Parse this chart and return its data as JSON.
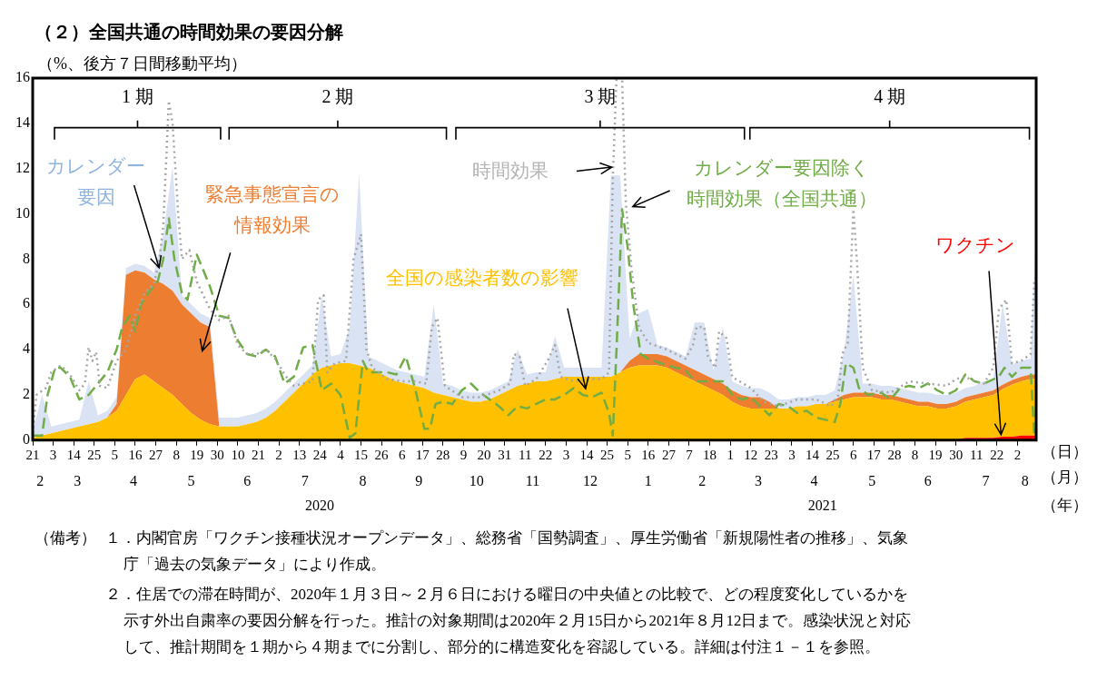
{
  "chart_data": {
    "type": "area",
    "title": "（２）全国共通の時間効果の要因分解",
    "ylabel": "（%、後方７日間移動平均）",
    "xlabel": "（日）",
    "x2label": "（月）",
    "stacked": true,
    "grid": false,
    "x": [
      "2020-02-21",
      "2020-02-26",
      "2020-03-02",
      "2020-03-07",
      "2020-03-12",
      "2020-03-17",
      "2020-03-22",
      "2020-03-27",
      "2020-04-01",
      "2020-04-06",
      "2020-04-11",
      "2020-04-16",
      "2020-04-21",
      "2020-04-26",
      "2020-05-01",
      "2020-05-06",
      "2020-05-11",
      "2020-05-16",
      "2020-05-21",
      "2020-05-26",
      "2020-05-31",
      "2020-06-05",
      "2020-06-10",
      "2020-06-15",
      "2020-06-20",
      "2020-06-25",
      "2020-06-30",
      "2020-07-05",
      "2020-07-10",
      "2020-07-15",
      "2020-07-20",
      "2020-07-25",
      "2020-07-30",
      "2020-08-04",
      "2020-08-09",
      "2020-08-14",
      "2020-08-19",
      "2020-08-24",
      "2020-08-29",
      "2020-09-03",
      "2020-09-08",
      "2020-09-13",
      "2020-09-18",
      "2020-09-23",
      "2020-09-28",
      "2020-10-03",
      "2020-10-08",
      "2020-10-13",
      "2020-10-18",
      "2020-10-23",
      "2020-10-28",
      "2020-11-02",
      "2020-11-07",
      "2020-11-12",
      "2020-11-17",
      "2020-11-22",
      "2020-11-27",
      "2020-12-02",
      "2020-12-07",
      "2020-12-12",
      "2020-12-17",
      "2020-12-22",
      "2020-12-27",
      "2021-01-01",
      "2021-01-06",
      "2021-01-11",
      "2021-01-16",
      "2021-01-21",
      "2021-01-26",
      "2021-01-31",
      "2021-02-05",
      "2021-02-10",
      "2021-02-15",
      "2021-02-20",
      "2021-02-25",
      "2021-03-02",
      "2021-03-07",
      "2021-03-12",
      "2021-03-17",
      "2021-03-22",
      "2021-03-27",
      "2021-04-01",
      "2021-04-06",
      "2021-04-11",
      "2021-04-16",
      "2021-04-21",
      "2021-04-26",
      "2021-05-01",
      "2021-05-06",
      "2021-05-11",
      "2021-05-16",
      "2021-05-21",
      "2021-05-26",
      "2021-05-31",
      "2021-06-05",
      "2021-06-10",
      "2021-06-15",
      "2021-06-20",
      "2021-06-25",
      "2021-06-30",
      "2021-07-05",
      "2021-07-10",
      "2021-07-15",
      "2021-07-20",
      "2021-07-25",
      "2021-07-30",
      "2021-08-04",
      "2021-08-09",
      "2021-08-12"
    ],
    "xlim": [
      "2020-02-21",
      "2021-08-12"
    ],
    "xticks": [
      {
        "value": "2020-02-21",
        "label": "21"
      },
      {
        "value": "2020-03-03",
        "label": "3"
      },
      {
        "value": "2020-03-14",
        "label": "14"
      },
      {
        "value": "2020-03-25",
        "label": "25"
      },
      {
        "value": "2020-04-05",
        "label": "5"
      },
      {
        "value": "2020-04-16",
        "label": "16"
      },
      {
        "value": "2020-04-27",
        "label": "27"
      },
      {
        "value": "2020-05-08",
        "label": "8"
      },
      {
        "value": "2020-05-19",
        "label": "19"
      },
      {
        "value": "2020-05-30",
        "label": "30"
      },
      {
        "value": "2020-06-10",
        "label": "10"
      },
      {
        "value": "2020-06-21",
        "label": "21"
      },
      {
        "value": "2020-07-02",
        "label": "2"
      },
      {
        "value": "2020-07-13",
        "label": "13"
      },
      {
        "value": "2020-07-24",
        "label": "24"
      },
      {
        "value": "2020-08-04",
        "label": "4"
      },
      {
        "value": "2020-08-15",
        "label": "15"
      },
      {
        "value": "2020-08-26",
        "label": "26"
      },
      {
        "value": "2020-09-06",
        "label": "6"
      },
      {
        "value": "2020-09-17",
        "label": "17"
      },
      {
        "value": "2020-09-28",
        "label": "28"
      },
      {
        "value": "2020-10-09",
        "label": "9"
      },
      {
        "value": "2020-10-20",
        "label": "20"
      },
      {
        "value": "2020-10-31",
        "label": "31"
      },
      {
        "value": "2020-11-11",
        "label": "11"
      },
      {
        "value": "2020-11-22",
        "label": "22"
      },
      {
        "value": "2020-12-03",
        "label": "3"
      },
      {
        "value": "2020-12-14",
        "label": "14"
      },
      {
        "value": "2020-12-25",
        "label": "25"
      },
      {
        "value": "2021-01-05",
        "label": "5"
      },
      {
        "value": "2021-01-16",
        "label": "16"
      },
      {
        "value": "2021-01-27",
        "label": "27"
      },
      {
        "value": "2021-02-07",
        "label": "7"
      },
      {
        "value": "2021-02-18",
        "label": "18"
      },
      {
        "value": "2021-03-01",
        "label": "1"
      },
      {
        "value": "2021-03-12",
        "label": "12"
      },
      {
        "value": "2021-03-23",
        "label": "23"
      },
      {
        "value": "2021-04-03",
        "label": "3"
      },
      {
        "value": "2021-04-14",
        "label": "14"
      },
      {
        "value": "2021-04-25",
        "label": "25"
      },
      {
        "value": "2021-05-06",
        "label": "6"
      },
      {
        "value": "2021-05-17",
        "label": "17"
      },
      {
        "value": "2021-05-28",
        "label": "28"
      },
      {
        "value": "2021-06-08",
        "label": "8"
      },
      {
        "value": "2021-06-19",
        "label": "19"
      },
      {
        "value": "2021-06-30",
        "label": "30"
      },
      {
        "value": "2021-07-11",
        "label": "11"
      },
      {
        "value": "2021-07-22",
        "label": "22"
      },
      {
        "value": "2021-08-02",
        "label": "2"
      }
    ],
    "x2lim": [
      "2020-02-21",
      "2021-08-12"
    ],
    "x2ticks": [
      {
        "value": "2020-02-25",
        "label": "2"
      },
      {
        "value": "2020-03-16",
        "label": "3"
      },
      {
        "value": "2020-04-15",
        "label": "4"
      },
      {
        "value": "2020-05-16",
        "label": "5"
      },
      {
        "value": "2020-06-15",
        "label": "6"
      },
      {
        "value": "2020-07-16",
        "label": "7"
      },
      {
        "value": "2020-08-16",
        "label": "8"
      },
      {
        "value": "2020-09-15",
        "label": "9"
      },
      {
        "value": "2020-10-16",
        "label": "10"
      },
      {
        "value": "2020-11-15",
        "label": "11"
      },
      {
        "value": "2020-12-16",
        "label": "12"
      },
      {
        "value": "2021-01-16",
        "label": "1"
      },
      {
        "value": "2021-02-14",
        "label": "2"
      },
      {
        "value": "2021-03-16",
        "label": "3"
      },
      {
        "value": "2021-04-15",
        "label": "4"
      },
      {
        "value": "2021-05-16",
        "label": "5"
      },
      {
        "value": "2021-06-15",
        "label": "6"
      },
      {
        "value": "2021-07-16",
        "label": "7"
      },
      {
        "value": "2021-08-06",
        "label": "8"
      }
    ],
    "ylim": [
      0,
      16
    ],
    "yticks": [
      0,
      2,
      4,
      6,
      8,
      10,
      12,
      14,
      16
    ],
    "series": [
      {
        "name": "ワクチン",
        "color": "#ff0000",
        "values": [
          0,
          0,
          0,
          0,
          0,
          0,
          0,
          0,
          0,
          0,
          0,
          0,
          0,
          0,
          0,
          0,
          0,
          0,
          0,
          0,
          0,
          0,
          0,
          0,
          0,
          0,
          0,
          0,
          0,
          0,
          0,
          0,
          0,
          0,
          0,
          0,
          0,
          0,
          0,
          0,
          0,
          0,
          0,
          0,
          0,
          0,
          0,
          0,
          0,
          0,
          0,
          0,
          0,
          0,
          0,
          0,
          0,
          0,
          0,
          0,
          0,
          0,
          0,
          0,
          0,
          0,
          0,
          0,
          0,
          0,
          0,
          0,
          0,
          0,
          0,
          0,
          0,
          0,
          0,
          0,
          0,
          0,
          0,
          0,
          0,
          0,
          0,
          0,
          0,
          0,
          0,
          0,
          0,
          0,
          0,
          0,
          0,
          0,
          0,
          0,
          0.1,
          0.1,
          0.1,
          0.1,
          0.15,
          0.15,
          0.2,
          0.2,
          0.2
        ]
      },
      {
        "name": "全国の感染者数の影響",
        "color": "#ffc000",
        "values": [
          0.1,
          0.2,
          0.3,
          0.4,
          0.5,
          0.6,
          0.7,
          0.8,
          1.0,
          1.3,
          2.0,
          2.7,
          2.9,
          2.6,
          2.3,
          2.0,
          1.6,
          1.2,
          0.9,
          0.7,
          0.6,
          0.6,
          0.6,
          0.7,
          0.8,
          1.0,
          1.3,
          1.7,
          2.1,
          2.5,
          2.9,
          3.2,
          3.3,
          3.4,
          3.4,
          3.3,
          3.2,
          3.0,
          2.8,
          2.6,
          2.5,
          2.4,
          2.3,
          2.1,
          2.0,
          1.9,
          1.8,
          1.7,
          1.7,
          1.8,
          2.0,
          2.2,
          2.4,
          2.5,
          2.6,
          2.6,
          2.7,
          2.8,
          2.8,
          2.8,
          2.8,
          2.8,
          2.8,
          3.0,
          3.2,
          3.3,
          3.3,
          3.3,
          3.2,
          3.0,
          2.8,
          2.6,
          2.4,
          2.2,
          2.0,
          1.7,
          1.5,
          1.4,
          1.4,
          1.4,
          1.4,
          1.4,
          1.5,
          1.5,
          1.6,
          1.6,
          1.7,
          1.8,
          1.9,
          1.9,
          1.9,
          1.8,
          1.8,
          1.7,
          1.6,
          1.5,
          1.5,
          1.4,
          1.4,
          1.5,
          1.6,
          1.7,
          1.8,
          1.9,
          2.1,
          2.3,
          2.4,
          2.5,
          2.5
        ]
      },
      {
        "name": "緊急事態宣言の情報効果",
        "color": "#ed7d31",
        "values": [
          0,
          0,
          0,
          0,
          0,
          0,
          0,
          0,
          0,
          0.3,
          5.3,
          4.8,
          4.5,
          4.5,
          4.6,
          4.6,
          4.4,
          4.4,
          4.3,
          4.3,
          0,
          0,
          0,
          0,
          0,
          0,
          0,
          0,
          0,
          0,
          0,
          0,
          0,
          0,
          0,
          0,
          0,
          0,
          0,
          0,
          0,
          0,
          0,
          0,
          0,
          0,
          0,
          0,
          0,
          0,
          0,
          0,
          0,
          0,
          0,
          0,
          0,
          0,
          0,
          0,
          0,
          0,
          0,
          0,
          0.3,
          0.5,
          0.5,
          0.5,
          0.5,
          0.5,
          0.5,
          0.5,
          0.5,
          0.5,
          0.5,
          0.5,
          0.5,
          0.5,
          0.5,
          0.3,
          0,
          0,
          0,
          0,
          0,
          0,
          0.1,
          0.2,
          0.2,
          0.2,
          0.2,
          0.2,
          0.2,
          0.2,
          0.2,
          0.2,
          0.2,
          0.2,
          0.2,
          0.2,
          0.2,
          0.2,
          0.2,
          0.2,
          0.2,
          0.2,
          0.2,
          0.2,
          0.2
        ]
      },
      {
        "name": "カレンダー要因",
        "color": "#dae3f3",
        "values": [
          0.3,
          1.8,
          0.3,
          0.3,
          0.3,
          0.3,
          1.9,
          0.3,
          0.3,
          0.3,
          0.3,
          0.3,
          0.3,
          0.3,
          2.2,
          5.5,
          0.4,
          0.4,
          0.4,
          0.4,
          0.4,
          0.4,
          0.4,
          0.4,
          0.4,
          0.4,
          0.4,
          0.4,
          0.4,
          0.4,
          0.4,
          3.2,
          0.4,
          0.4,
          1.6,
          8.5,
          0.5,
          0.5,
          0.5,
          0.5,
          0.5,
          0.5,
          0.5,
          3.9,
          0.5,
          0.5,
          0.4,
          0.4,
          0.4,
          0.4,
          0.4,
          0.4,
          1.6,
          0.4,
          0.4,
          0.4,
          1.9,
          0.4,
          0.4,
          0.4,
          0.4,
          0.4,
          8.9,
          8.7,
          1.0,
          1.8,
          2.0,
          0.4,
          0.4,
          0.4,
          0.4,
          2.1,
          2.3,
          0.4,
          2.5,
          0.4,
          0.4,
          0.4,
          0.4,
          0.4,
          0.4,
          0.4,
          0.4,
          0.4,
          0.4,
          0.4,
          0.4,
          1.9,
          5.2,
          0.4,
          0.4,
          0.4,
          0.4,
          0.4,
          0.4,
          0.4,
          0.4,
          0.4,
          0.4,
          0.4,
          0.4,
          0.4,
          0.5,
          0.5,
          3.6,
          0.7,
          0.7,
          0.7,
          6.7
        ]
      },
      {
        "name": "時間効果",
        "type": "line",
        "line_style": "dotted",
        "marker": "none",
        "color": "#a6a6a6",
        "x": [
          "2020-02-21",
          "2020-02-23",
          "2020-02-28",
          "2020-03-02",
          "2020-03-07",
          "2020-03-12",
          "2020-03-17",
          "2020-03-20",
          "2020-03-22",
          "2020-03-24",
          "2020-03-26",
          "2020-03-28",
          "2020-04-01",
          "2020-04-06",
          "2020-04-11",
          "2020-04-16",
          "2020-04-21",
          "2020-04-26",
          "2020-04-29",
          "2020-05-01",
          "2020-05-04",
          "2020-05-06",
          "2020-05-09",
          "2020-05-11",
          "2020-05-15",
          "2020-05-19",
          "2020-05-26",
          "2020-05-31",
          "2020-06-05",
          "2020-06-10",
          "2020-06-15",
          "2020-06-20",
          "2020-06-25",
          "2020-06-30",
          "2020-07-05",
          "2020-07-10",
          "2020-07-20",
          "2020-07-23",
          "2020-07-26",
          "2020-07-28",
          "2020-08-01",
          "2020-08-07",
          "2020-08-11",
          "2020-08-15",
          "2020-08-18",
          "2020-08-21",
          "2020-08-29",
          "2020-09-06",
          "2020-09-13",
          "2020-09-19",
          "2020-09-22",
          "2020-09-25",
          "2020-09-29",
          "2020-10-08",
          "2020-10-18",
          "2020-10-28",
          "2020-11-03",
          "2020-11-05",
          "2020-11-08",
          "2020-11-11",
          "2020-11-17",
          "2020-11-23",
          "2020-11-27",
          "2020-11-30",
          "2020-12-07",
          "2020-12-17",
          "2020-12-22",
          "2020-12-26",
          "2020-12-28",
          "2020-12-30",
          "2021-01-02",
          "2021-01-04",
          "2021-01-07",
          "2021-01-11",
          "2021-01-16",
          "2021-01-26",
          "2021-02-05",
          "2021-02-09",
          "2021-02-11",
          "2021-02-15",
          "2021-02-17",
          "2021-02-21",
          "2021-02-23",
          "2021-02-27",
          "2021-03-02",
          "2021-03-12",
          "2021-03-19",
          "2021-03-27",
          "2021-04-06",
          "2021-04-16",
          "2021-04-24",
          "2021-04-28",
          "2021-04-30",
          "2021-05-03",
          "2021-05-06",
          "2021-05-08",
          "2021-05-11",
          "2021-05-16",
          "2021-05-26",
          "2021-06-05",
          "2021-06-15",
          "2021-06-25",
          "2021-06-30",
          "2021-07-05",
          "2021-07-10",
          "2021-07-15",
          "2021-07-20",
          "2021-07-23",
          "2021-07-27",
          "2021-07-30",
          "2021-08-04",
          "2021-08-09",
          "2021-08-11",
          "2021-08-12"
        ],
        "values": [
          0.3,
          2.0,
          2.3,
          3.0,
          3.3,
          2.9,
          2.2,
          2.5,
          4.1,
          3.5,
          3.9,
          2.4,
          2.3,
          3.5,
          4.0,
          5.5,
          6.5,
          6.9,
          8.0,
          9.5,
          15.0,
          14.0,
          10.0,
          8.0,
          8.4,
          7.0,
          5.8,
          5.3,
          5.5,
          4.2,
          3.8,
          3.8,
          4.0,
          3.6,
          2.9,
          2.4,
          2.6,
          6.2,
          6.4,
          3.0,
          3.4,
          3.5,
          8.0,
          9.1,
          4.0,
          3.2,
          2.7,
          2.6,
          2.6,
          2.5,
          5.0,
          5.4,
          2.4,
          1.9,
          1.9,
          2.2,
          2.5,
          3.8,
          3.7,
          2.4,
          2.7,
          3.5,
          4.2,
          2.8,
          2.6,
          2.7,
          2.7,
          3.0,
          11.5,
          16,
          16,
          10.5,
          7.6,
          5.0,
          4.3,
          4.0,
          3.6,
          4.2,
          5.0,
          5.0,
          3.7,
          3.2,
          4.8,
          4.5,
          2.8,
          2.3,
          1.7,
          1.5,
          1.8,
          1.8,
          1.5,
          2.0,
          3.8,
          4.3,
          10.2,
          7.8,
          3.2,
          2.2,
          2.1,
          2.6,
          2.5,
          2.4,
          2.7,
          2.8,
          2.6,
          2.5,
          3.2,
          5.8,
          6.2,
          3.4,
          3.5,
          3.8,
          7.0,
          7.2
        ]
      },
      {
        "name": "カレンダー要因除く時間効果（全国共通）",
        "type": "line",
        "line_style": "dashed",
        "marker": "none",
        "color": "#70ad47",
        "x": [
          "2020-02-21",
          "2020-02-26",
          "2020-02-29",
          "2020-03-04",
          "2020-03-07",
          "2020-03-12",
          "2020-03-17",
          "2020-03-22",
          "2020-03-27",
          "2020-04-01",
          "2020-04-06",
          "2020-04-09",
          "2020-04-13",
          "2020-04-16",
          "2020-04-19",
          "2020-04-23",
          "2020-04-28",
          "2020-05-01",
          "2020-05-04",
          "2020-05-07",
          "2020-05-11",
          "2020-05-14",
          "2020-05-19",
          "2020-05-26",
          "2020-05-31",
          "2020-06-05",
          "2020-06-10",
          "2020-06-15",
          "2020-06-20",
          "2020-06-25",
          "2020-06-30",
          "2020-07-05",
          "2020-07-10",
          "2020-07-15",
          "2020-07-20",
          "2020-07-25",
          "2020-07-30",
          "2020-08-04",
          "2020-08-09",
          "2020-08-12",
          "2020-08-16",
          "2020-08-19",
          "2020-08-29",
          "2020-09-03",
          "2020-09-08",
          "2020-09-13",
          "2020-09-18",
          "2020-09-21",
          "2020-09-24",
          "2020-09-28",
          "2020-10-03",
          "2020-10-08",
          "2020-10-13",
          "2020-10-18",
          "2020-10-23",
          "2020-10-28",
          "2020-11-02",
          "2020-11-07",
          "2020-11-12",
          "2020-11-17",
          "2020-11-22",
          "2020-11-27",
          "2020-12-02",
          "2020-12-07",
          "2020-12-12",
          "2020-12-17",
          "2020-12-22",
          "2020-12-26",
          "2020-12-28",
          "2020-12-30",
          "2021-01-02",
          "2021-01-05",
          "2021-01-08",
          "2021-01-12",
          "2021-01-16",
          "2021-01-26",
          "2021-02-05",
          "2021-02-10",
          "2021-02-15",
          "2021-02-20",
          "2021-02-25",
          "2021-03-02",
          "2021-03-07",
          "2021-03-12",
          "2021-03-17",
          "2021-03-22",
          "2021-03-27",
          "2021-04-01",
          "2021-04-06",
          "2021-04-11",
          "2021-04-16",
          "2021-04-21",
          "2021-04-26",
          "2021-04-29",
          "2021-05-02",
          "2021-05-06",
          "2021-05-09",
          "2021-05-14",
          "2021-05-21",
          "2021-05-26",
          "2021-05-31",
          "2021-06-05",
          "2021-06-10",
          "2021-06-15",
          "2021-06-20",
          "2021-06-25",
          "2021-06-30",
          "2021-07-05",
          "2021-07-10",
          "2021-07-15",
          "2021-07-23",
          "2021-07-26",
          "2021-07-30",
          "2021-08-04",
          "2021-08-09",
          "2021-08-11"
        ],
        "values": [
          0.2,
          0.2,
          2.0,
          3.2,
          3.2,
          2.8,
          1.8,
          2.0,
          2.5,
          3.0,
          4.0,
          5.0,
          5.5,
          4.8,
          6.0,
          6.5,
          7.0,
          8.0,
          9.8,
          8.0,
          6.5,
          6.2,
          8.2,
          6.8,
          5.5,
          5.4,
          4.4,
          3.8,
          3.7,
          4.0,
          3.7,
          2.5,
          2.8,
          4.1,
          4.2,
          2.2,
          2.5,
          2.0,
          0.1,
          0.3,
          3.5,
          3.0,
          3.0,
          2.9,
          3.7,
          2.3,
          0.5,
          0.5,
          1.6,
          1.7,
          1.6,
          2.2,
          2.5,
          2.1,
          1.8,
          1.5,
          1.1,
          1.5,
          1.4,
          1.6,
          1.8,
          1.8,
          2.0,
          2.3,
          2.0,
          1.9,
          2.1,
          1.2,
          0.2,
          4.0,
          10.2,
          8.5,
          6.0,
          3.8,
          3.6,
          3.3,
          3.1,
          2.6,
          2.6,
          2.6,
          2.6,
          2.0,
          1.8,
          1.9,
          1.5,
          1.1,
          1.6,
          1.5,
          1.2,
          1.3,
          1.0,
          0.9,
          0.8,
          1.6,
          3.4,
          3.2,
          2.3,
          2.0,
          2.1,
          1.8,
          2.3,
          2.4,
          2.3,
          2.5,
          2.2,
          2.0,
          2.2,
          2.9,
          2.6,
          2.5,
          2.8,
          3.2,
          2.8,
          3.2,
          3.2,
          0.2
        ]
      }
    ],
    "annotations": [
      "（備考）",
      "１．内閣官房「ワクチン接種状況オープンデータ」、総務省「国勢調査」、厚生労働省「新規陽性者の推移」、気象庁「過去の気象データ」により作成。",
      "２．住居での滞在時間が、2020年１月３日～２月６日における曜日の中央値との比較で、どの程度変化しているかを示す外出自粛率の要因分解を行った。推計の対象期間は2020年２月15日から2021年８月12日まで。感染状況と対応して、推計期間を１期から４期までに分割し、部分的に構造変化を容認している。詳細は付注１－１を参照。",
      "1 期",
      "2 期",
      "3 期",
      "4 期",
      "2020",
      "2021",
      "（年）"
    ]
  }
}
